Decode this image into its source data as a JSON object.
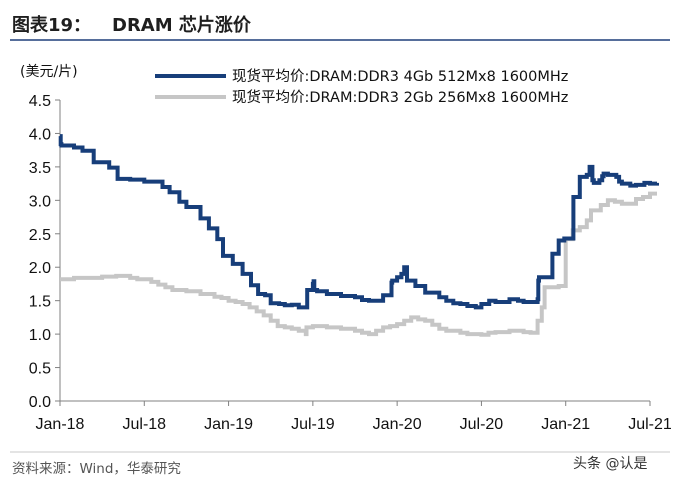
{
  "figure": {
    "label": "图表19：",
    "title": "DRAM 芯片涨价",
    "source": "资料来源：Wind，华泰研究",
    "watermark": "头条 @认是"
  },
  "colors": {
    "title_rule": "#1f3f7a",
    "series_dark": "#173e7a",
    "series_light": "#c6c6c6",
    "axis": "#808080",
    "text": "#111111"
  },
  "chart_data": {
    "type": "line",
    "title": "DRAM 芯片涨价",
    "ylabel": "(美元/片)",
    "xlabel": "",
    "ylim": [
      0.0,
      4.5
    ],
    "ytick_values": [
      0.0,
      0.5,
      1.0,
      1.5,
      2.0,
      2.5,
      3.0,
      3.5,
      4.0,
      4.5
    ],
    "ytick_labels": [
      "0.0",
      "0.5",
      "1.0",
      "1.5",
      "2.0",
      "2.5",
      "3.0",
      "3.5",
      "4.0",
      "4.5"
    ],
    "xlim": [
      0,
      42
    ],
    "xtick_values": [
      0,
      6,
      12,
      18,
      24,
      30,
      36,
      42
    ],
    "xtick_labels": [
      "Jan-18",
      "Jul-18",
      "Jan-19",
      "Jul-19",
      "Jan-20",
      "Jul-20",
      "Jan-21",
      "Jul-21"
    ],
    "legend_position": "top",
    "grid": false,
    "series": [
      {
        "name": "现货平均价:DRAM:DDR3 4Gb 512Mx8 1600MHz",
        "color": "#173e7a",
        "x": [
          0.0,
          0.05,
          0.1,
          1.0,
          1.6,
          2.4,
          3.5,
          4.1,
          5.0,
          6.0,
          7.3,
          7.8,
          8.5,
          9.0,
          10.0,
          10.6,
          11.2,
          11.6,
          12.3,
          13.0,
          13.6,
          14.1,
          14.6,
          15.0,
          15.6,
          16.0,
          16.5,
          17.0,
          17.6,
          18.0,
          18.05,
          18.1,
          18.3,
          19.0,
          20.0,
          21.0,
          21.5,
          22.0,
          23.0,
          23.6,
          23.65,
          24.0,
          24.3,
          24.5,
          24.7,
          25.3,
          26.0,
          27.0,
          27.5,
          28.0,
          28.5,
          29.0,
          29.6,
          30.0,
          30.5,
          30.55,
          31.0,
          31.5,
          32.0,
          32.6,
          33.0,
          33.5,
          34.0,
          34.05,
          34.1,
          35.0,
          35.05,
          35.5,
          35.9,
          36.5,
          36.55,
          37.0,
          37.5,
          37.7,
          37.9,
          38.0,
          38.4,
          38.6,
          38.7,
          39.0,
          39.6,
          39.8,
          40.0,
          40.6,
          41.0,
          41.6,
          42.0,
          42.5
        ],
        "values": [
          3.96,
          3.84,
          3.82,
          3.79,
          3.74,
          3.57,
          3.49,
          3.32,
          3.31,
          3.28,
          3.2,
          3.12,
          2.98,
          2.9,
          2.73,
          2.58,
          2.42,
          2.17,
          2.05,
          1.9,
          1.73,
          1.6,
          1.58,
          1.46,
          1.45,
          1.43,
          1.44,
          1.4,
          1.66,
          1.75,
          1.79,
          1.66,
          1.64,
          1.6,
          1.57,
          1.55,
          1.51,
          1.5,
          1.58,
          1.77,
          1.8,
          1.85,
          1.9,
          2.0,
          1.8,
          1.72,
          1.62,
          1.55,
          1.5,
          1.46,
          1.45,
          1.42,
          1.4,
          1.45,
          1.45,
          1.5,
          1.48,
          1.48,
          1.52,
          1.5,
          1.48,
          1.48,
          1.52,
          1.8,
          1.85,
          1.85,
          2.2,
          2.4,
          2.43,
          2.43,
          3.05,
          3.35,
          3.38,
          3.5,
          3.3,
          3.26,
          3.3,
          3.36,
          3.4,
          3.38,
          3.35,
          3.28,
          3.25,
          3.22,
          3.23,
          3.26,
          3.25,
          3.26
        ]
      },
      {
        "name": "现货平均价:DRAM:DDR3 2Gb 256Mx8 1600MHz",
        "color": "#c6c6c6",
        "x": [
          0.0,
          0.5,
          1.0,
          2.0,
          3.0,
          4.0,
          5.0,
          5.5,
          6.5,
          7.0,
          7.5,
          8.0,
          9.0,
          10.0,
          11.0,
          11.5,
          12.0,
          12.5,
          13.0,
          13.5,
          14.0,
          14.5,
          15.0,
          15.5,
          16.0,
          16.5,
          17.0,
          17.5,
          17.55,
          18.0,
          19.0,
          20.0,
          21.0,
          21.5,
          22.0,
          22.5,
          23.0,
          23.5,
          24.0,
          24.5,
          25.0,
          25.5,
          26.0,
          26.5,
          27.0,
          27.5,
          28.0,
          28.5,
          29.0,
          29.5,
          30.0,
          30.5,
          31.0,
          32.0,
          33.0,
          33.5,
          34.0,
          34.3,
          34.5,
          35.0,
          35.5,
          36.0,
          36.5,
          37.0,
          37.5,
          37.8,
          38.5,
          39.0,
          39.5,
          40.0,
          40.5,
          41.0,
          41.5,
          42.0,
          42.5
        ],
        "values": [
          1.82,
          1.82,
          1.84,
          1.84,
          1.86,
          1.87,
          1.84,
          1.82,
          1.78,
          1.74,
          1.7,
          1.66,
          1.64,
          1.6,
          1.56,
          1.54,
          1.5,
          1.48,
          1.45,
          1.4,
          1.34,
          1.28,
          1.2,
          1.12,
          1.1,
          1.08,
          1.05,
          1.0,
          1.1,
          1.12,
          1.1,
          1.08,
          1.05,
          1.02,
          1.0,
          1.05,
          1.1,
          1.12,
          1.15,
          1.2,
          1.25,
          1.22,
          1.2,
          1.14,
          1.08,
          1.05,
          1.05,
          1.02,
          1.0,
          1.0,
          0.99,
          1.02,
          1.03,
          1.05,
          1.03,
          1.02,
          1.2,
          1.4,
          1.7,
          1.7,
          1.72,
          2.42,
          2.55,
          2.6,
          2.7,
          2.85,
          2.93,
          3.0,
          2.98,
          2.95,
          2.95,
          3.02,
          3.05,
          3.1,
          3.1
        ]
      }
    ]
  }
}
